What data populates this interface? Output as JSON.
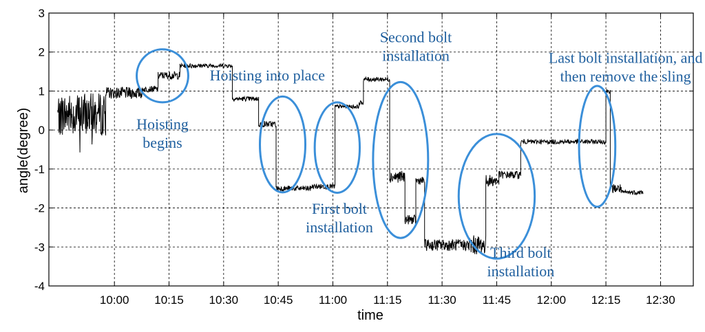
{
  "chart_data": {
    "type": "line",
    "title": "",
    "xlabel": "time",
    "ylabel": "angle(degree)",
    "ylim": [
      -4,
      3
    ],
    "y_ticks": [
      3,
      2,
      1,
      0,
      -1,
      -2,
      -3,
      -4
    ],
    "xlim_minutes": [
      9.7,
      12.65
    ],
    "x_ticks": [
      {
        "label": "10:00",
        "t": 10.0
      },
      {
        "label": "10:15",
        "t": 10.25
      },
      {
        "label": "10:30",
        "t": 10.5
      },
      {
        "label": "10:45",
        "t": 10.75
      },
      {
        "label": "11:00",
        "t": 11.0
      },
      {
        "label": "11:15",
        "t": 11.25
      },
      {
        "label": "11:30",
        "t": 11.5
      },
      {
        "label": "11:45",
        "t": 11.75
      },
      {
        "label": "12:00",
        "t": 12.0
      },
      {
        "label": "12:15",
        "t": 12.25
      },
      {
        "label": "12:30",
        "t": 12.5
      }
    ],
    "grid": true,
    "series": [
      {
        "name": "angle",
        "color": "#000000",
        "segments": [
          {
            "t0": 9.74,
            "t1": 9.96,
            "level": 0.4,
            "noise": 0.55
          },
          {
            "t0": 9.96,
            "t1": 10.13,
            "level": 0.95,
            "noise": 0.15
          },
          {
            "t0": 10.13,
            "t1": 10.2,
            "level": 1.05,
            "noise": 0.08
          },
          {
            "t0": 10.2,
            "t1": 10.3,
            "level": 1.4,
            "noise": 0.1
          },
          {
            "t0": 10.3,
            "t1": 10.38,
            "level": 1.65,
            "noise": 0.06
          },
          {
            "t0": 10.38,
            "t1": 10.54,
            "level": 1.65,
            "noise": 0.05
          },
          {
            "t0": 10.54,
            "t1": 10.66,
            "level": 0.8,
            "noise": 0.06
          },
          {
            "t0": 10.66,
            "t1": 10.74,
            "level": 0.15,
            "noise": 0.08
          },
          {
            "t0": 10.74,
            "t1": 10.9,
            "level": -1.5,
            "noise": 0.07
          },
          {
            "t0": 10.9,
            "t1": 11.01,
            "level": -1.45,
            "noise": 0.07
          },
          {
            "t0": 11.01,
            "t1": 11.12,
            "level": 0.6,
            "noise": 0.05
          },
          {
            "t0": 11.12,
            "t1": 11.14,
            "level": 0.7,
            "noise": 0.05
          },
          {
            "t0": 11.14,
            "t1": 11.26,
            "level": 1.3,
            "noise": 0.06
          },
          {
            "t0": 11.26,
            "t1": 11.33,
            "level": -1.2,
            "noise": 0.15
          },
          {
            "t0": 11.33,
            "t1": 11.38,
            "level": -2.3,
            "noise": 0.12
          },
          {
            "t0": 11.38,
            "t1": 11.42,
            "level": -1.3,
            "noise": 0.1
          },
          {
            "t0": 11.42,
            "t1": 11.62,
            "level": -2.95,
            "noise": 0.15
          },
          {
            "t0": 11.62,
            "t1": 11.7,
            "level": -2.95,
            "noise": 0.25
          },
          {
            "t0": 11.7,
            "t1": 11.76,
            "level": -1.3,
            "noise": 0.15
          },
          {
            "t0": 11.76,
            "t1": 11.86,
            "level": -1.15,
            "noise": 0.1
          },
          {
            "t0": 11.86,
            "t1": 12.25,
            "level": -0.3,
            "noise": 0.06
          },
          {
            "t0": 12.25,
            "t1": 12.27,
            "level": 1.0,
            "noise": 0.06
          },
          {
            "t0": 12.27,
            "t1": 12.32,
            "level": -1.5,
            "noise": 0.12
          },
          {
            "t0": 12.32,
            "t1": 12.42,
            "level": -1.6,
            "noise": 0.06
          }
        ]
      }
    ],
    "annotations": [
      {
        "id": "hoisting-begins",
        "lines": [
          "Hoisting",
          "begins"
        ],
        "t": 10.22,
        "y": 0.02
      },
      {
        "id": "hoisting-into-place",
        "lines": [
          "Hoisting into place"
        ],
        "t": 10.7,
        "y": 1.27
      },
      {
        "id": "first-bolt",
        "lines": [
          "First bolt",
          "installation"
        ],
        "t": 11.03,
        "y": -2.15
      },
      {
        "id": "second-bolt",
        "lines": [
          "Second bolt",
          "installation"
        ],
        "t": 11.38,
        "y": 2.25
      },
      {
        "id": "third-bolt",
        "lines": [
          "Third bolt",
          "installation"
        ],
        "t": 11.86,
        "y": -3.28
      },
      {
        "id": "last-bolt",
        "lines": [
          "Last bolt installation, and",
          "then remove the sling"
        ],
        "t": 12.34,
        "y": 1.72
      }
    ],
    "highlight_ellipses": [
      {
        "id": "hoisting-begins",
        "t": 10.22,
        "y": 1.39,
        "rt": 0.118,
        "ry": 0.68
      },
      {
        "id": "hoisting-into-place",
        "t": 10.77,
        "y": -0.37,
        "rt": 0.104,
        "ry": 1.23
      },
      {
        "id": "first-bolt",
        "t": 11.02,
        "y": -0.45,
        "rt": 0.103,
        "ry": 1.16
      },
      {
        "id": "second-bolt",
        "t": 11.31,
        "y": -0.77,
        "rt": 0.126,
        "ry": 2.0
      },
      {
        "id": "third-bolt",
        "t": 11.75,
        "y": -1.7,
        "rt": 0.174,
        "ry": 1.6
      },
      {
        "id": "last-bolt",
        "t": 12.21,
        "y": -0.42,
        "rt": 0.083,
        "ry": 1.55
      }
    ],
    "ellipse_color": "#3b8fd9",
    "annotation_color": "#1f5f9e"
  }
}
